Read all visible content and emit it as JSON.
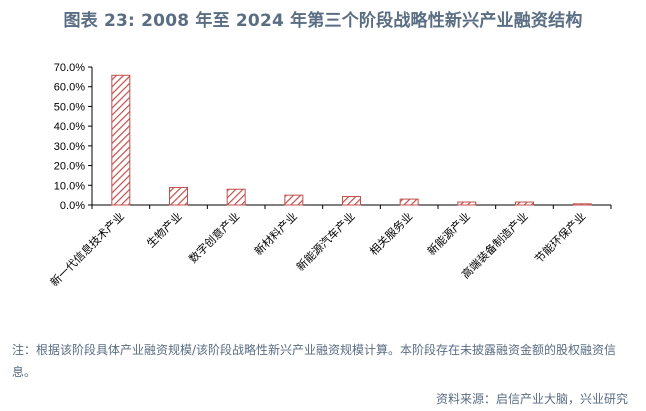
{
  "title": "图表 23: 2008 年至 2024 年第三个阶段战略性新兴产业融资结构",
  "note": "注：根据该阶段具体产业融资规模/该阶段战略性新兴产业融资规模计算。本阶段存在未披露融资金额的股权融资信息。",
  "source": "资料来源：启信产业大脑，兴业研究",
  "colors": {
    "bar_stroke": "#c0504d",
    "bar_hatch": "#c0504d",
    "axis": "#000000",
    "text": "#5a6d83"
  },
  "chart_data": {
    "type": "bar",
    "categories": [
      "新一代信息技术产业",
      "生物产业",
      "数字创意产业",
      "新材料产业",
      "新能源汽车产业",
      "相关服务业",
      "新能源产业",
      "高端装备制造产业",
      "节能环保产业"
    ],
    "values": [
      65.8,
      8.9,
      8.0,
      5.0,
      4.3,
      3.0,
      1.5,
      1.5,
      0.6
    ],
    "unit": "%",
    "ylim": [
      0,
      70
    ],
    "yticks": [
      "0.0%",
      "10.0%",
      "20.0%",
      "30.0%",
      "40.0%",
      "50.0%",
      "60.0%",
      "70.0%"
    ],
    "grid": false,
    "legend": "none",
    "bar_fill": "diagonal-hatch"
  }
}
